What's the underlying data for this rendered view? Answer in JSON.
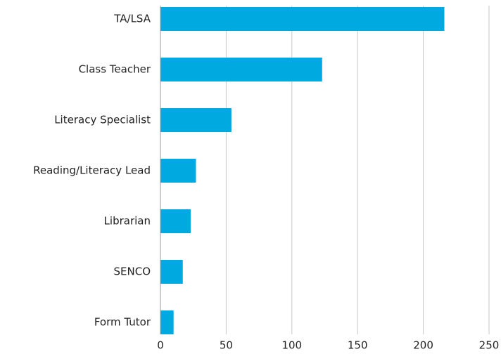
{
  "chart_data": {
    "type": "bar",
    "orientation": "horizontal",
    "categories": [
      "TA/LSA",
      "Class Teacher",
      "Literacy Specialist",
      "Reading/Literacy Lead",
      "Librarian",
      "SENCO",
      "Form Tutor"
    ],
    "values": [
      216,
      123,
      54,
      27,
      23,
      17,
      10
    ],
    "color": "#00a9e0",
    "xlim": [
      0,
      250
    ],
    "xticks": [
      0,
      50,
      100,
      150,
      200,
      250
    ],
    "grid": true
  }
}
